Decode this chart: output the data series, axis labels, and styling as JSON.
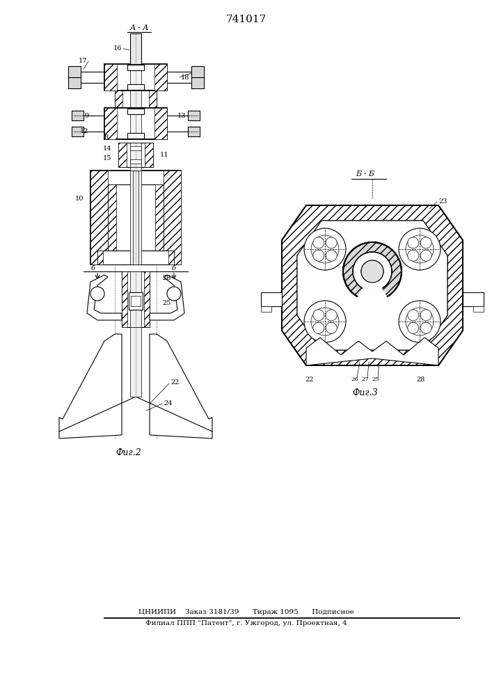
{
  "title": "741017",
  "footer_line1": "ЦНИИПИ    Заказ 3181/39      Тираж 1095      Подписное",
  "footer_line2": "Филиал ППП \"Патент\", г. Ужгород, ул. Проектная, 4",
  "fig2_caption": "Фиг.2",
  "fig3_caption": "Фиг.3",
  "bg_color": "#ffffff",
  "line_color": "#000000"
}
